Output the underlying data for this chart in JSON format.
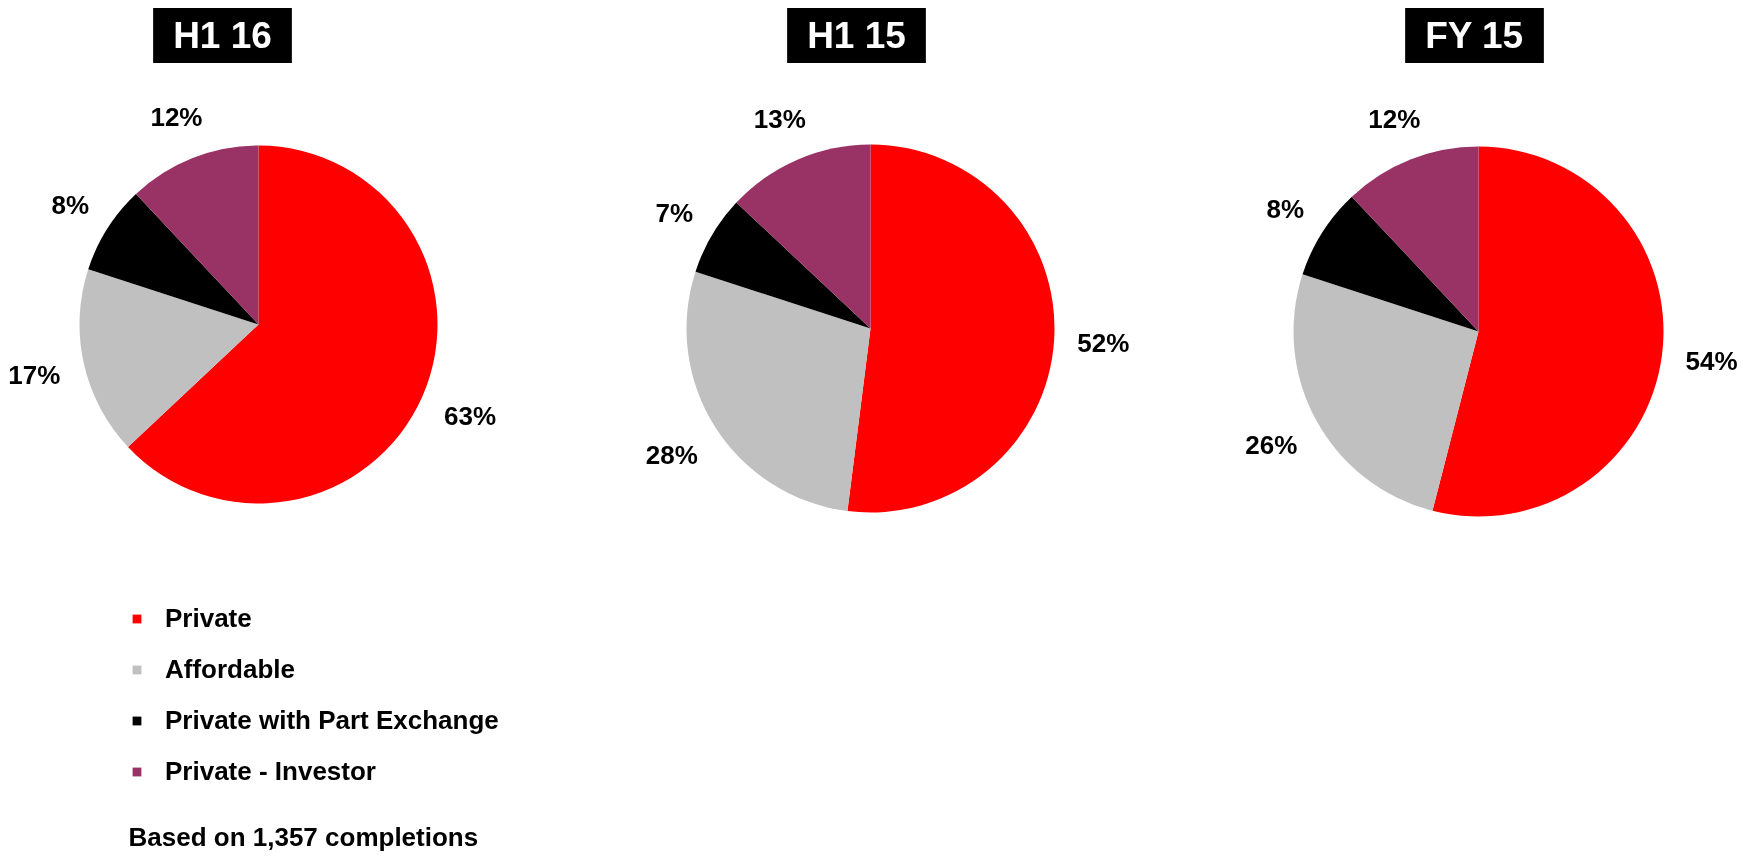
{
  "chart_data": [
    {
      "type": "pie",
      "title": "H1 16",
      "categories": [
        "Private",
        "Affordable",
        "Private with Part Exchange",
        "Private - Investor"
      ],
      "values": [
        63,
        17,
        8,
        12
      ],
      "colors": [
        "#ff0000",
        "#c0c0c0",
        "#000000",
        "#993366"
      ],
      "value_labels": [
        "63%",
        "17%",
        "8%",
        "12%"
      ],
      "legend": "bottom",
      "annotations": [
        "Based on 1,357 completions"
      ]
    },
    {
      "type": "pie",
      "title": "H1 15",
      "values": [
        52,
        28,
        7,
        13
      ],
      "colors": [
        "#ff0000",
        "#c0c0c0",
        "#000000",
        "#993366"
      ],
      "value_labels": [
        "52%",
        "28%",
        "7%",
        "13%"
      ]
    },
    {
      "type": "pie",
      "title": "FY 15",
      "values": [
        54,
        26,
        8,
        12
      ],
      "colors": [
        "#ff0000",
        "#c0c0c0",
        "#000000",
        "#993366"
      ],
      "value_labels": [
        "54%",
        "26%",
        "8%",
        "12%"
      ]
    }
  ]
}
